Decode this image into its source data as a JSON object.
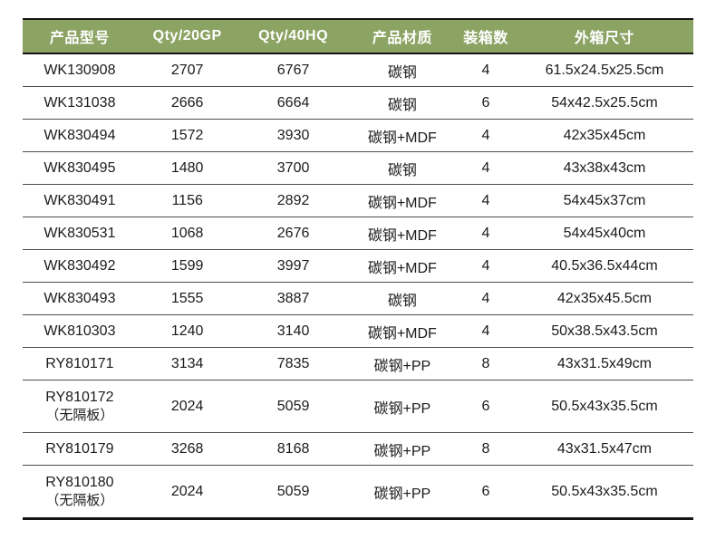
{
  "colors": {
    "header_bg": "#8BA363",
    "header_text": "#ffffff",
    "body_text": "#1b1b1b",
    "row_separator": "#4d4d4d",
    "frame_border": "#141414",
    "page_bg": "#ffffff"
  },
  "table": {
    "columns": [
      {
        "key": "model",
        "label": "产品型号",
        "width": "17%"
      },
      {
        "key": "qty20",
        "label": "Qty/20GP",
        "width": "15.1%"
      },
      {
        "key": "qty40",
        "label": "Qty/40HQ",
        "width": "16.5%"
      },
      {
        "key": "material",
        "label": "产品材质",
        "width": "16%"
      },
      {
        "key": "pack",
        "label": "装箱数",
        "width": "8.9%"
      },
      {
        "key": "size",
        "label": "外箱尺寸",
        "width": "26.5%"
      }
    ],
    "rows": [
      {
        "model": "WK130908",
        "note": "",
        "qty20": "2707",
        "qty40": "6767",
        "material": "碳钢",
        "pack": "4",
        "size": "61.5x24.5x25.5cm"
      },
      {
        "model": "WK131038",
        "note": "",
        "qty20": "2666",
        "qty40": "6664",
        "material": "碳钢",
        "pack": "6",
        "size": "54x42.5x25.5cm"
      },
      {
        "model": "WK830494",
        "note": "",
        "qty20": "1572",
        "qty40": "3930",
        "material": "碳钢+MDF",
        "pack": "4",
        "size": "42x35x45cm"
      },
      {
        "model": "WK830495",
        "note": "",
        "qty20": "1480",
        "qty40": "3700",
        "material": "碳钢",
        "pack": "4",
        "size": "43x38x43cm"
      },
      {
        "model": "WK830491",
        "note": "",
        "qty20": "1156",
        "qty40": "2892",
        "material": "碳钢+MDF",
        "pack": "4",
        "size": "54x45x37cm"
      },
      {
        "model": "WK830531",
        "note": "",
        "qty20": "1068",
        "qty40": "2676",
        "material": "碳钢+MDF",
        "pack": "4",
        "size": "54x45x40cm"
      },
      {
        "model": "WK830492",
        "note": "",
        "qty20": "1599",
        "qty40": "3997",
        "material": "碳钢+MDF",
        "pack": "4",
        "size": "40.5x36.5x44cm"
      },
      {
        "model": "WK830493",
        "note": "",
        "qty20": "1555",
        "qty40": "3887",
        "material": "碳钢",
        "pack": "4",
        "size": "42x35x45.5cm"
      },
      {
        "model": "WK810303",
        "note": "",
        "qty20": "1240",
        "qty40": "3140",
        "material": "碳钢+MDF",
        "pack": "4",
        "size": "50x38.5x43.5cm"
      },
      {
        "model": "RY810171",
        "note": "",
        "qty20": "3134",
        "qty40": "7835",
        "material": "碳钢+PP",
        "pack": "8",
        "size": "43x31.5x49cm"
      },
      {
        "model": "RY810172",
        "note": "（无隔板）",
        "qty20": "2024",
        "qty40": "5059",
        "material": "碳钢+PP",
        "pack": "6",
        "size": "50.5x43x35.5cm"
      },
      {
        "model": "RY810179",
        "note": "",
        "qty20": "3268",
        "qty40": "8168",
        "material": "碳钢+PP",
        "pack": "8",
        "size": "43x31.5x47cm"
      },
      {
        "model": "RY810180",
        "note": "（无隔板）",
        "qty20": "2024",
        "qty40": "5059",
        "material": "碳钢+PP",
        "pack": "6",
        "size": "50.5x43x35.5cm"
      }
    ]
  }
}
